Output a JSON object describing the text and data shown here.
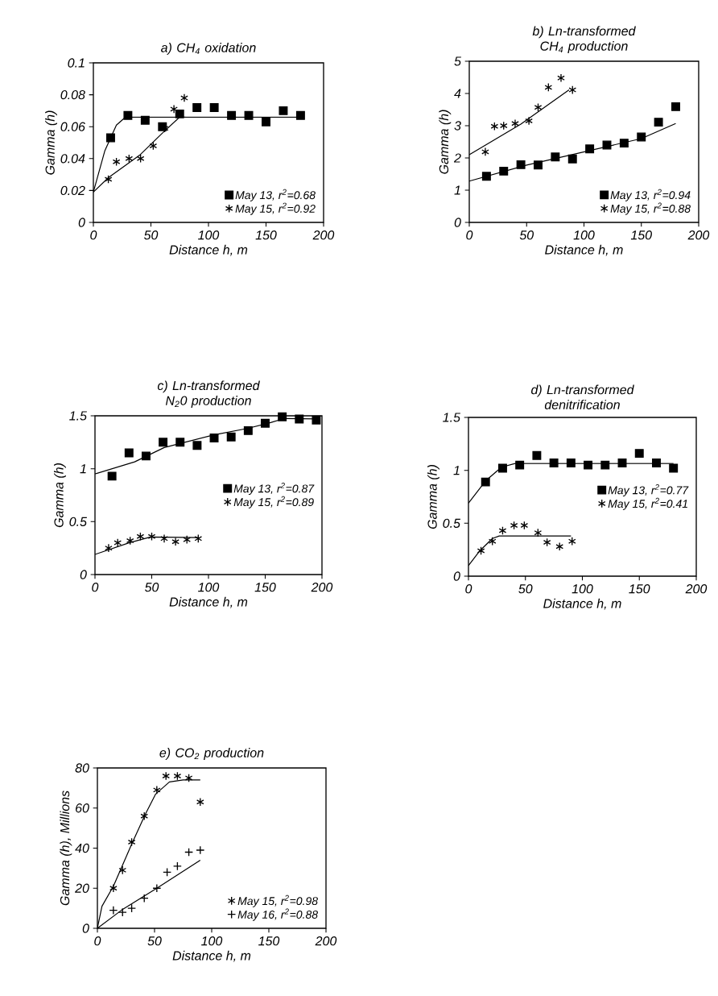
{
  "chart_data": [
    {
      "type": "scatter",
      "title": "a) CH$_{4}$ oxidation",
      "xlabel": "Distance h, m",
      "ylabel": "Gamma (h)",
      "xlim": [
        0,
        200
      ],
      "ylim": [
        0,
        0.1
      ],
      "xticks": [
        0,
        50,
        100,
        150,
        200
      ],
      "yticks": [
        0,
        0.02,
        0.04,
        0.06,
        0.08,
        0.1
      ],
      "legend": "bottom right",
      "series": [
        {
          "name": "May 13, r$^{2}$=0.68",
          "marker": "square",
          "color": "#000000",
          "x": [
            15,
            30,
            45,
            60,
            75,
            90,
            105,
            120,
            135,
            150,
            165,
            180
          ],
          "values": [
            0.053,
            0.067,
            0.064,
            0.06,
            0.068,
            0.072,
            0.072,
            0.067,
            0.067,
            0.063,
            0.07,
            0.067
          ]
        },
        {
          "name": "May 15, r$^{2}$=0.92",
          "marker": "cross",
          "color": "#000000",
          "x": [
            13,
            20,
            31,
            41,
            52,
            62,
            70,
            79
          ],
          "values": [
            0.027,
            0.038,
            0.04,
            0.04,
            0.048,
            0.059,
            0.071,
            0.078
          ]
        },
        {
          "type": "line",
          "color": "#000000",
          "x": [
            0,
            10,
            20,
            28,
            180
          ],
          "values": [
            0.019,
            0.045,
            0.061,
            0.066,
            0.066
          ]
        },
        {
          "type": "line",
          "color": "#000000",
          "x": [
            0,
            13,
            40,
            60,
            75,
            80
          ],
          "values": [
            0.019,
            0.028,
            0.042,
            0.056,
            0.066,
            0.066
          ]
        }
      ]
    },
    {
      "type": "scatter",
      "title": "b) Ln-transformed CH$_{4}$ production",
      "xlabel": "Distance h, m",
      "ylabel": "Gamma (h)",
      "xlim": [
        0,
        200
      ],
      "ylim": [
        0,
        5
      ],
      "xticks": [
        0,
        50,
        100,
        150,
        200
      ],
      "yticks": [
        0,
        1,
        2,
        3,
        4,
        5
      ],
      "legend": "bottom right",
      "series": [
        {
          "name": "May 13, r$^{2}$=0.94",
          "marker": "square",
          "color": "#000000",
          "x": [
            15,
            30,
            45,
            60,
            75,
            90,
            105,
            120,
            135,
            150,
            165,
            180
          ],
          "values": [
            1.43,
            1.59,
            1.79,
            1.78,
            2.03,
            1.97,
            2.28,
            2.4,
            2.46,
            2.65,
            3.11,
            3.59
          ]
        },
        {
          "name": "May 15, r$^{2}$=0.88",
          "marker": "cross",
          "color": "#000000",
          "x": [
            14,
            22,
            30,
            40,
            52,
            60,
            69,
            80,
            90
          ],
          "values": [
            2.19,
            2.98,
            3.0,
            3.07,
            3.15,
            3.57,
            4.19,
            4.48,
            4.11
          ]
        },
        {
          "type": "line",
          "color": "#000000",
          "x": [
            0,
            50,
            100,
            150,
            180
          ],
          "values": [
            1.28,
            1.78,
            2.19,
            2.6,
            3.07
          ]
        },
        {
          "type": "line",
          "color": "#000000",
          "x": [
            0,
            45,
            87
          ],
          "values": [
            2.1,
            3.05,
            4.11
          ]
        }
      ]
    },
    {
      "type": "scatter",
      "title": "c) Ln-transformed N$_{2}$0 production",
      "xlabel": "Distance h, m",
      "ylabel": "Gamma (h)",
      "xlim": [
        0,
        200
      ],
      "ylim": [
        0,
        1.5
      ],
      "xticks": [
        0,
        50,
        100,
        150,
        200
      ],
      "yticks": [
        0,
        0.5,
        1,
        1.5
      ],
      "legend": "right",
      "series": [
        {
          "name": "May 13, r$^{2}$=0.87",
          "marker": "square",
          "color": "#000000",
          "x": [
            15,
            30,
            45,
            60,
            75,
            90,
            105,
            120,
            135,
            150,
            165,
            180,
            195
          ],
          "values": [
            0.93,
            1.15,
            1.12,
            1.25,
            1.25,
            1.22,
            1.29,
            1.3,
            1.36,
            1.43,
            1.49,
            1.47,
            1.46
          ]
        },
        {
          "name": "May 15, r$^{2}$=0.89",
          "marker": "cross",
          "color": "#000000",
          "x": [
            12,
            20,
            31,
            40,
            50,
            61,
            71,
            81,
            91
          ],
          "values": [
            0.25,
            0.3,
            0.32,
            0.36,
            0.36,
            0.34,
            0.31,
            0.33,
            0.34
          ]
        },
        {
          "type": "line",
          "color": "#000000",
          "x": [
            0,
            35,
            61,
            105,
            134,
            153,
            167,
            197
          ],
          "values": [
            0.95,
            1.065,
            1.2,
            1.32,
            1.38,
            1.43,
            1.475,
            1.47
          ]
        },
        {
          "type": "line",
          "color": "#000000",
          "x": [
            0,
            30,
            49,
            91
          ],
          "values": [
            0.19,
            0.3,
            0.355,
            0.35
          ]
        }
      ]
    },
    {
      "type": "scatter",
      "title": "d) Ln-transformed denitrification",
      "xlabel": "Distance h, m",
      "ylabel": "Gamma (h)",
      "xlim": [
        0,
        200
      ],
      "ylim": [
        0,
        1.5
      ],
      "xticks": [
        0,
        50,
        100,
        150,
        200
      ],
      "yticks": [
        0,
        0.5,
        1,
        1.5
      ],
      "legend": "right",
      "series": [
        {
          "name": "May 13, r$^{2}$=0.77",
          "marker": "square",
          "color": "#000000",
          "x": [
            15,
            30,
            45,
            60,
            75,
            90,
            105,
            120,
            135,
            150,
            165,
            180
          ],
          "values": [
            0.89,
            1.02,
            1.05,
            1.14,
            1.07,
            1.07,
            1.05,
            1.05,
            1.07,
            1.16,
            1.07,
            1.02
          ]
        },
        {
          "name": "May 15, r$^{2}$=0.41",
          "marker": "cross",
          "color": "#000000",
          "x": [
            11,
            21,
            30,
            40,
            49,
            61,
            69,
            80,
            91
          ],
          "values": [
            0.24,
            0.33,
            0.43,
            0.48,
            0.48,
            0.41,
            0.32,
            0.28,
            0.33
          ]
        },
        {
          "type": "line",
          "color": "#000000",
          "x": [
            0,
            15,
            29,
            41,
            180
          ],
          "values": [
            0.69,
            0.9,
            1.03,
            1.065,
            1.065
          ]
        },
        {
          "type": "line",
          "color": "#000000",
          "x": [
            0,
            10,
            21,
            27,
            90
          ],
          "values": [
            0.1,
            0.24,
            0.356,
            0.38,
            0.38
          ]
        }
      ]
    },
    {
      "type": "scatter",
      "title": "e) CO$_{2}$ production",
      "xlabel": "Distance h, m",
      "ylabel": "Gamma (h), Millions",
      "xlim": [
        0,
        200
      ],
      "ylim": [
        0,
        80
      ],
      "xticks": [
        0,
        50,
        100,
        150,
        200
      ],
      "yticks": [
        0,
        20,
        40,
        60,
        80
      ],
      "legend": "bottom right",
      "series": [
        {
          "name": "May 15, r$^{2}$=0.98",
          "marker": "cross",
          "color": "#000000",
          "x": [
            14,
            22,
            30,
            41,
            52,
            60,
            70,
            80,
            90
          ],
          "values": [
            20,
            29,
            43,
            56,
            69,
            76,
            76,
            75,
            63
          ]
        },
        {
          "name": "May 16, r$^{2}$=0.88",
          "color": "#000000",
          "x": [
            14,
            22,
            30,
            41,
            52,
            61,
            70,
            80,
            90
          ],
          "values": [
            9,
            8,
            10,
            15,
            20,
            28,
            31,
            38,
            39
          ]
        },
        {
          "type": "line",
          "color": "#000000",
          "x": [
            0,
            4,
            14,
            30,
            42,
            51,
            63,
            75,
            90
          ],
          "values": [
            0,
            11,
            21,
            42,
            57,
            67,
            73,
            74,
            74
          ]
        },
        {
          "type": "line",
          "color": "#000000",
          "x": [
            0,
            21,
            52,
            90
          ],
          "values": [
            0,
            9,
            20,
            34
          ]
        }
      ]
    }
  ]
}
